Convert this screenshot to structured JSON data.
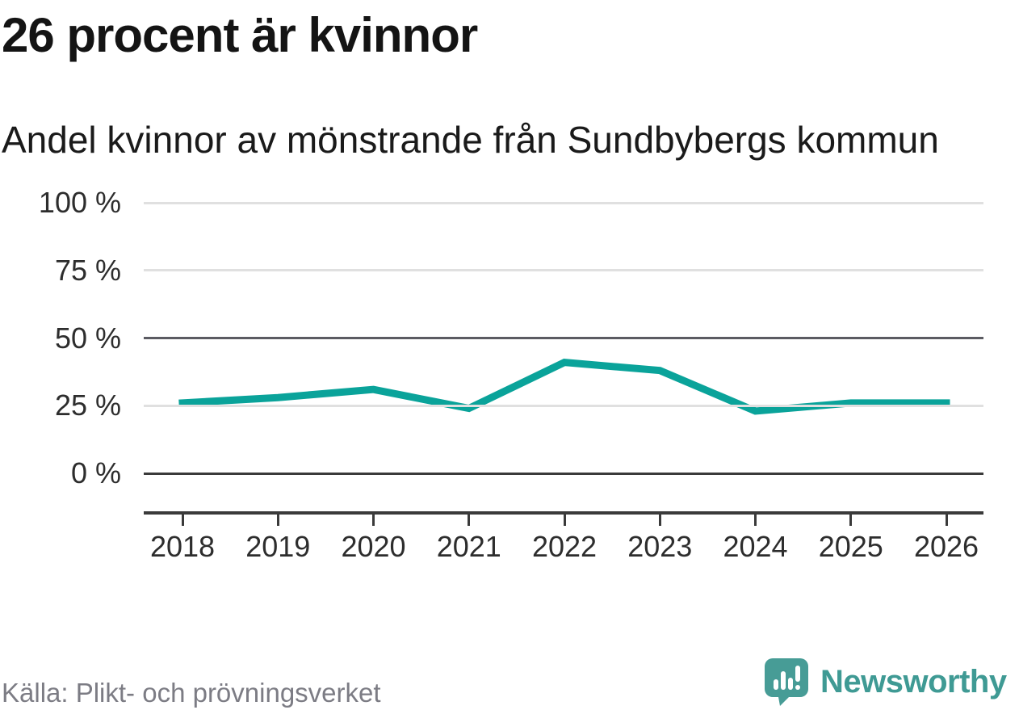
{
  "header": {
    "title": "26 procent är kvinnor",
    "subtitle": "Andel kvinnor av mönstrande från Sundbybergs kommun"
  },
  "chart_data": {
    "type": "line",
    "x_labels": [
      "2018",
      "2019",
      "2020",
      "2021",
      "2022",
      "2023",
      "2024",
      "2025",
      "2026"
    ],
    "series": [
      {
        "name": "Andel kvinnor av mönstrande (%)",
        "values": [
          26,
          28,
          31,
          24,
          41,
          38,
          23,
          26,
          26
        ]
      }
    ],
    "title": "26 procent är kvinnor",
    "subtitle": "Andel kvinnor av mönstrande från Sundbybergs kommun",
    "xlabel": "",
    "ylabel": "",
    "ylim": [
      0,
      100
    ],
    "yticks": [
      0,
      25,
      50,
      75,
      100
    ],
    "ytick_labels": [
      "0 %",
      "25 %",
      "50 %",
      "75 %",
      "100 %"
    ],
    "reference_line": 50,
    "grid": "horizontal",
    "legend": "none",
    "line_color": "#0aa39a"
  },
  "footer": {
    "source": "Källa: Plikt- och prövningsverket",
    "brand_wordmark": "Newsworthy"
  },
  "colors": {
    "accent_teal": "#0aa39a",
    "brand_teal": "#3f9a94",
    "grid_light": "#e0e0e0",
    "grid_dark": "#5b5b62",
    "axis_dark": "#3a3a3a",
    "text_dark": "#141414",
    "text_gray": "#7c7c84"
  }
}
